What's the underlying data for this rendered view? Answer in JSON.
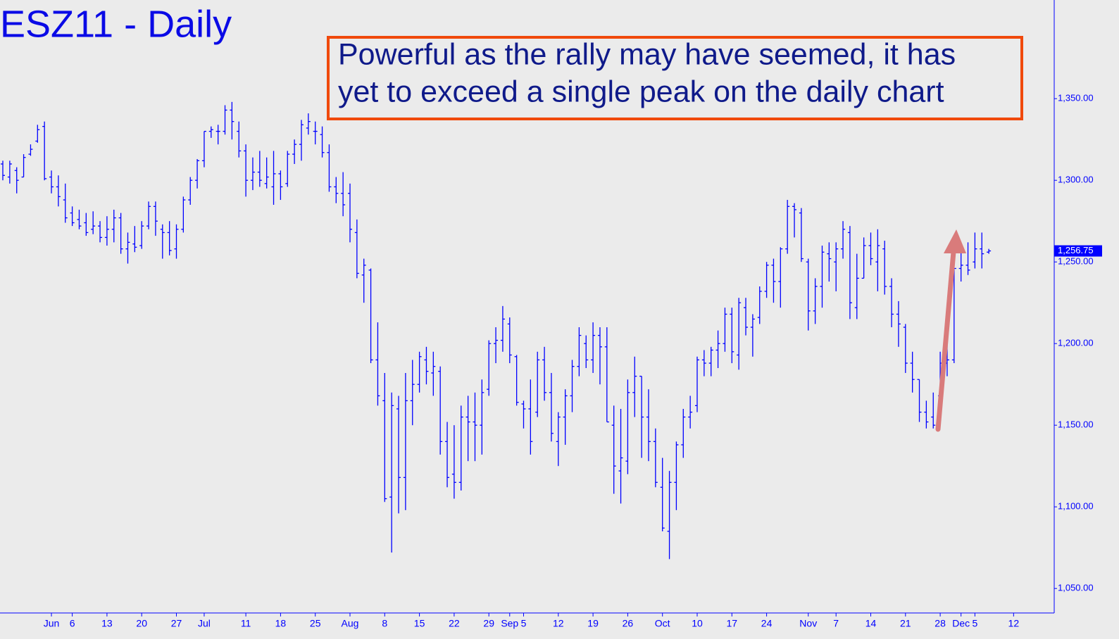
{
  "chart_data": {
    "type": "ohlc",
    "title": "ESZ11 - Daily",
    "annotation": [
      "Powerful as the rally may have seemed, it has",
      "yet to exceed a single peak on the daily chart"
    ],
    "color": "#0000ff",
    "x": [
      "May 23",
      "May 24",
      "May 25",
      "May 26",
      "May 27",
      "May 30",
      "May 31",
      "Jun 1",
      "Jun 2",
      "Jun 3",
      "Jun 6",
      "Jun 7",
      "Jun 8",
      "Jun 9",
      "Jun 10",
      "Jun 13",
      "Jun 14",
      "Jun 15",
      "Jun 16",
      "Jun 17",
      "Jun 20",
      "Jun 21",
      "Jun 22",
      "Jun 23",
      "Jun 24",
      "Jun 27",
      "Jun 28",
      "Jun 29",
      "Jun 30",
      "Jul 1",
      "Jul 4",
      "Jul 5",
      "Jul 6",
      "Jul 7",
      "Jul 8",
      "Jul 11",
      "Jul 12",
      "Jul 13",
      "Jul 14",
      "Jul 15",
      "Jul 18",
      "Jul 19",
      "Jul 20",
      "Jul 21",
      "Jul 22",
      "Jul 25",
      "Jul 26",
      "Jul 27",
      "Jul 28",
      "Jul 29",
      "Aug 1",
      "Aug 2",
      "Aug 3",
      "Aug 4",
      "Aug 5",
      "Aug 8",
      "Aug 9",
      "Aug 10",
      "Aug 11",
      "Aug 12",
      "Aug 15",
      "Aug 16",
      "Aug 17",
      "Aug 18",
      "Aug 19",
      "Aug 22",
      "Aug 23",
      "Aug 24",
      "Aug 25",
      "Aug 26",
      "Aug 29",
      "Aug 30",
      "Aug 31",
      "Sep 1",
      "Sep 2",
      "Sep 5",
      "Sep 6",
      "Sep 7",
      "Sep 8",
      "Sep 9",
      "Sep 12",
      "Sep 13",
      "Sep 14",
      "Sep 15",
      "Sep 16",
      "Sep 19",
      "Sep 20",
      "Sep 21",
      "Sep 22",
      "Sep 23",
      "Sep 26",
      "Sep 27",
      "Sep 28",
      "Sep 29",
      "Sep 30",
      "Oct 3",
      "Oct 4",
      "Oct 5",
      "Oct 6",
      "Oct 7",
      "Oct 10",
      "Oct 11",
      "Oct 12",
      "Oct 13",
      "Oct 14",
      "Oct 17",
      "Oct 18",
      "Oct 19",
      "Oct 20",
      "Oct 21",
      "Oct 24",
      "Oct 25",
      "Oct 26",
      "Oct 27",
      "Oct 28",
      "Oct 31",
      "Nov 1",
      "Nov 2",
      "Nov 3",
      "Nov 4",
      "Nov 7",
      "Nov 8",
      "Nov 9",
      "Nov 10",
      "Nov 11",
      "Nov 14",
      "Nov 15",
      "Nov 16",
      "Nov 17",
      "Nov 18",
      "Nov 21",
      "Nov 22",
      "Nov 23",
      "Nov 24",
      "Nov 25",
      "Nov 28",
      "Nov 29",
      "Nov 30",
      "Dec 1",
      "Dec 2",
      "Dec 5",
      "Dec 6",
      "Dec 7"
    ],
    "open": [
      1310,
      1302,
      1306,
      1302,
      1316,
      1324,
      1333,
      1302,
      1296,
      1288,
      1280,
      1276,
      1274,
      1270,
      1272,
      1265,
      1270,
      1277,
      1258,
      1261,
      1260,
      1272,
      1284,
      1270,
      1268,
      1258,
      1270,
      1288,
      1300,
      1312,
      1330,
      1330,
      1330,
      1343,
      1330,
      1318,
      1300,
      1305,
      1298,
      1296,
      1304,
      1298,
      1316,
      1322,
      1332,
      1330,
      1328,
      1317,
      1296,
      1292,
      1292,
      1268,
      1242,
      1245,
      1190,
      1165,
      1106,
      1160,
      1118,
      1165,
      1175,
      1190,
      1182,
      1183,
      1140,
      1120,
      1115,
      1155,
      1152,
      1150,
      1172,
      1200,
      1202,
      1212,
      1192,
      1163,
      1160,
      1158,
      1190,
      1170,
      1140,
      1155,
      1168,
      1186,
      1200,
      1190,
      1205,
      1198,
      1150,
      1122,
      1128,
      1170,
      1180,
      1155,
      1140,
      1112,
      1085,
      1115,
      1138,
      1155,
      1162,
      1190,
      1188,
      1196,
      1200,
      1218,
      1193,
      1222,
      1210,
      1216,
      1232,
      1248,
      1238,
      1258,
      1284,
      1280,
      1250,
      1220,
      1235,
      1255,
      1250,
      1258,
      1268,
      1222,
      1240,
      1260,
      1250,
      1258,
      1235,
      1218,
      1210,
      1188,
      1178,
      1158,
      1155,
      1168,
      1188,
      1190,
      1246,
      1248,
      1250,
      1258,
      1256
    ],
    "high": [
      1312,
      1312,
      1308,
      1316,
      1322,
      1334,
      1336,
      1306,
      1303,
      1298,
      1284,
      1282,
      1280,
      1281,
      1275,
      1278,
      1282,
      1280,
      1268,
      1272,
      1275,
      1287,
      1287,
      1273,
      1275,
      1273,
      1290,
      1302,
      1313,
      1330,
      1333,
      1334,
      1346,
      1348,
      1336,
      1322,
      1314,
      1318,
      1314,
      1318,
      1306,
      1318,
      1325,
      1337,
      1341,
      1336,
      1333,
      1322,
      1302,
      1305,
      1298,
      1276,
      1252,
      1246,
      1213,
      1182,
      1170,
      1168,
      1182,
      1190,
      1195,
      1198,
      1195,
      1186,
      1152,
      1150,
      1162,
      1168,
      1170,
      1178,
      1202,
      1210,
      1223,
      1216,
      1193,
      1165,
      1178,
      1195,
      1198,
      1182,
      1158,
      1172,
      1190,
      1210,
      1205,
      1213,
      1210,
      1210,
      1162,
      1160,
      1178,
      1192,
      1180,
      1172,
      1148,
      1130,
      1122,
      1140,
      1160,
      1168,
      1192,
      1196,
      1198,
      1208,
      1222,
      1222,
      1228,
      1228,
      1218,
      1235,
      1250,
      1252,
      1259,
      1288,
      1286,
      1283,
      1252,
      1240,
      1260,
      1262,
      1262,
      1275,
      1272,
      1255,
      1265,
      1268,
      1270,
      1263,
      1240,
      1226,
      1212,
      1195,
      1178,
      1165,
      1170,
      1195,
      1205,
      1252,
      1258,
      1262,
      1268,
      1268,
      1258
    ],
    "low": [
      1300,
      1298,
      1292,
      1302,
      1315,
      1323,
      1300,
      1292,
      1284,
      1274,
      1272,
      1270,
      1266,
      1267,
      1262,
      1260,
      1262,
      1255,
      1249,
      1256,
      1258,
      1270,
      1266,
      1252,
      1254,
      1252,
      1268,
      1285,
      1295,
      1308,
      1326,
      1322,
      1328,
      1325,
      1314,
      1290,
      1294,
      1296,
      1295,
      1285,
      1288,
      1296,
      1310,
      1312,
      1328,
      1322,
      1314,
      1293,
      1286,
      1278,
      1262,
      1240,
      1225,
      1188,
      1162,
      1103,
      1072,
      1096,
      1098,
      1150,
      1170,
      1175,
      1168,
      1132,
      1112,
      1105,
      1110,
      1128,
      1128,
      1132,
      1168,
      1188,
      1195,
      1188,
      1162,
      1148,
      1132,
      1155,
      1165,
      1140,
      1125,
      1138,
      1158,
      1180,
      1185,
      1182,
      1175,
      1152,
      1108,
      1102,
      1120,
      1155,
      1130,
      1128,
      1112,
      1085,
      1068,
      1098,
      1130,
      1148,
      1158,
      1180,
      1180,
      1185,
      1195,
      1188,
      1184,
      1205,
      1192,
      1212,
      1228,
      1225,
      1222,
      1255,
      1265,
      1250,
      1208,
      1212,
      1222,
      1238,
      1232,
      1252,
      1215,
      1215,
      1240,
      1248,
      1232,
      1230,
      1210,
      1198,
      1182,
      1170,
      1152,
      1148,
      1148,
      1168,
      1180,
      1188,
      1238,
      1242,
      1246,
      1246,
      1255
    ],
    "close": [
      1303,
      1310,
      1300,
      1314,
      1319,
      1331,
      1301,
      1296,
      1290,
      1277,
      1274,
      1272,
      1268,
      1272,
      1265,
      1270,
      1277,
      1258,
      1262,
      1259,
      1272,
      1284,
      1275,
      1268,
      1257,
      1270,
      1288,
      1300,
      1312,
      1330,
      1331,
      1330,
      1343,
      1336,
      1318,
      1300,
      1305,
      1300,
      1302,
      1304,
      1296,
      1316,
      1322,
      1334,
      1336,
      1330,
      1317,
      1296,
      1292,
      1285,
      1270,
      1243,
      1248,
      1190,
      1168,
      1105,
      1162,
      1118,
      1165,
      1175,
      1192,
      1183,
      1186,
      1140,
      1118,
      1115,
      1155,
      1152,
      1150,
      1170,
      1200,
      1202,
      1215,
      1193,
      1164,
      1160,
      1140,
      1190,
      1170,
      1145,
      1155,
      1168,
      1186,
      1205,
      1190,
      1205,
      1198,
      1152,
      1125,
      1130,
      1170,
      1180,
      1155,
      1140,
      1115,
      1087,
      1115,
      1138,
      1155,
      1158,
      1190,
      1188,
      1196,
      1200,
      1218,
      1195,
      1225,
      1210,
      1215,
      1232,
      1248,
      1238,
      1258,
      1284,
      1282,
      1252,
      1220,
      1235,
      1256,
      1252,
      1258,
      1270,
      1225,
      1240,
      1260,
      1252,
      1260,
      1235,
      1218,
      1212,
      1188,
      1178,
      1158,
      1152,
      1150,
      1188,
      1190,
      1246,
      1248,
      1245,
      1258,
      1255,
      1256.75
    ],
    "last_price": {
      "value": 1256.75,
      "label": "1,256.75"
    },
    "ylim": [
      1035,
      1410
    ],
    "yticks": [
      {
        "value": 1050,
        "label": "1,050.00"
      },
      {
        "value": 1100,
        "label": "1,100.00"
      },
      {
        "value": 1150,
        "label": "1,150.00"
      },
      {
        "value": 1200,
        "label": "1,200.00"
      },
      {
        "value": 1250,
        "label": "1,250.00"
      },
      {
        "value": 1300,
        "label": "1,300.00"
      },
      {
        "value": 1350,
        "label": "1,350.00"
      }
    ],
    "xticks": [
      {
        "value": "Jun 1",
        "label": "Jun"
      },
      {
        "value": "Jun 6",
        "label": "6"
      },
      {
        "value": "Jun 13",
        "label": "13"
      },
      {
        "value": "Jun 20",
        "label": "20"
      },
      {
        "value": "Jun 27",
        "label": "27"
      },
      {
        "value": "Jul 1",
        "label": "Jul"
      },
      {
        "value": "Jul 11",
        "label": "11"
      },
      {
        "value": "Jul 18",
        "label": "18"
      },
      {
        "value": "Jul 25",
        "label": "25"
      },
      {
        "value": "Aug 1",
        "label": "Aug"
      },
      {
        "value": "Aug 8",
        "label": "8"
      },
      {
        "value": "Aug 15",
        "label": "15"
      },
      {
        "value": "Aug 22",
        "label": "22"
      },
      {
        "value": "Aug 29",
        "label": "29"
      },
      {
        "value": "Sep 1",
        "label": "Sep"
      },
      {
        "value": "Sep 5",
        "label": "5"
      },
      {
        "value": "Sep 12",
        "label": "12"
      },
      {
        "value": "Sep 19",
        "label": "19"
      },
      {
        "value": "Sep 26",
        "label": "26"
      },
      {
        "value": "Oct 3",
        "label": "Oct"
      },
      {
        "value": "Oct 10",
        "label": "10"
      },
      {
        "value": "Oct 17",
        "label": "17"
      },
      {
        "value": "Oct 24",
        "label": "24"
      },
      {
        "value": "Nov 1",
        "label": "Nov"
      },
      {
        "value": "Nov 7",
        "label": "7"
      },
      {
        "value": "Nov 14",
        "label": "14"
      },
      {
        "value": "Nov 21",
        "label": "21"
      },
      {
        "value": "Nov 28",
        "label": "28"
      },
      {
        "value": "Dec 1",
        "label": "Dec"
      },
      {
        "value": "Dec 5",
        "label": "5"
      },
      {
        "value": "Dec 12",
        "label": "12"
      }
    ]
  }
}
